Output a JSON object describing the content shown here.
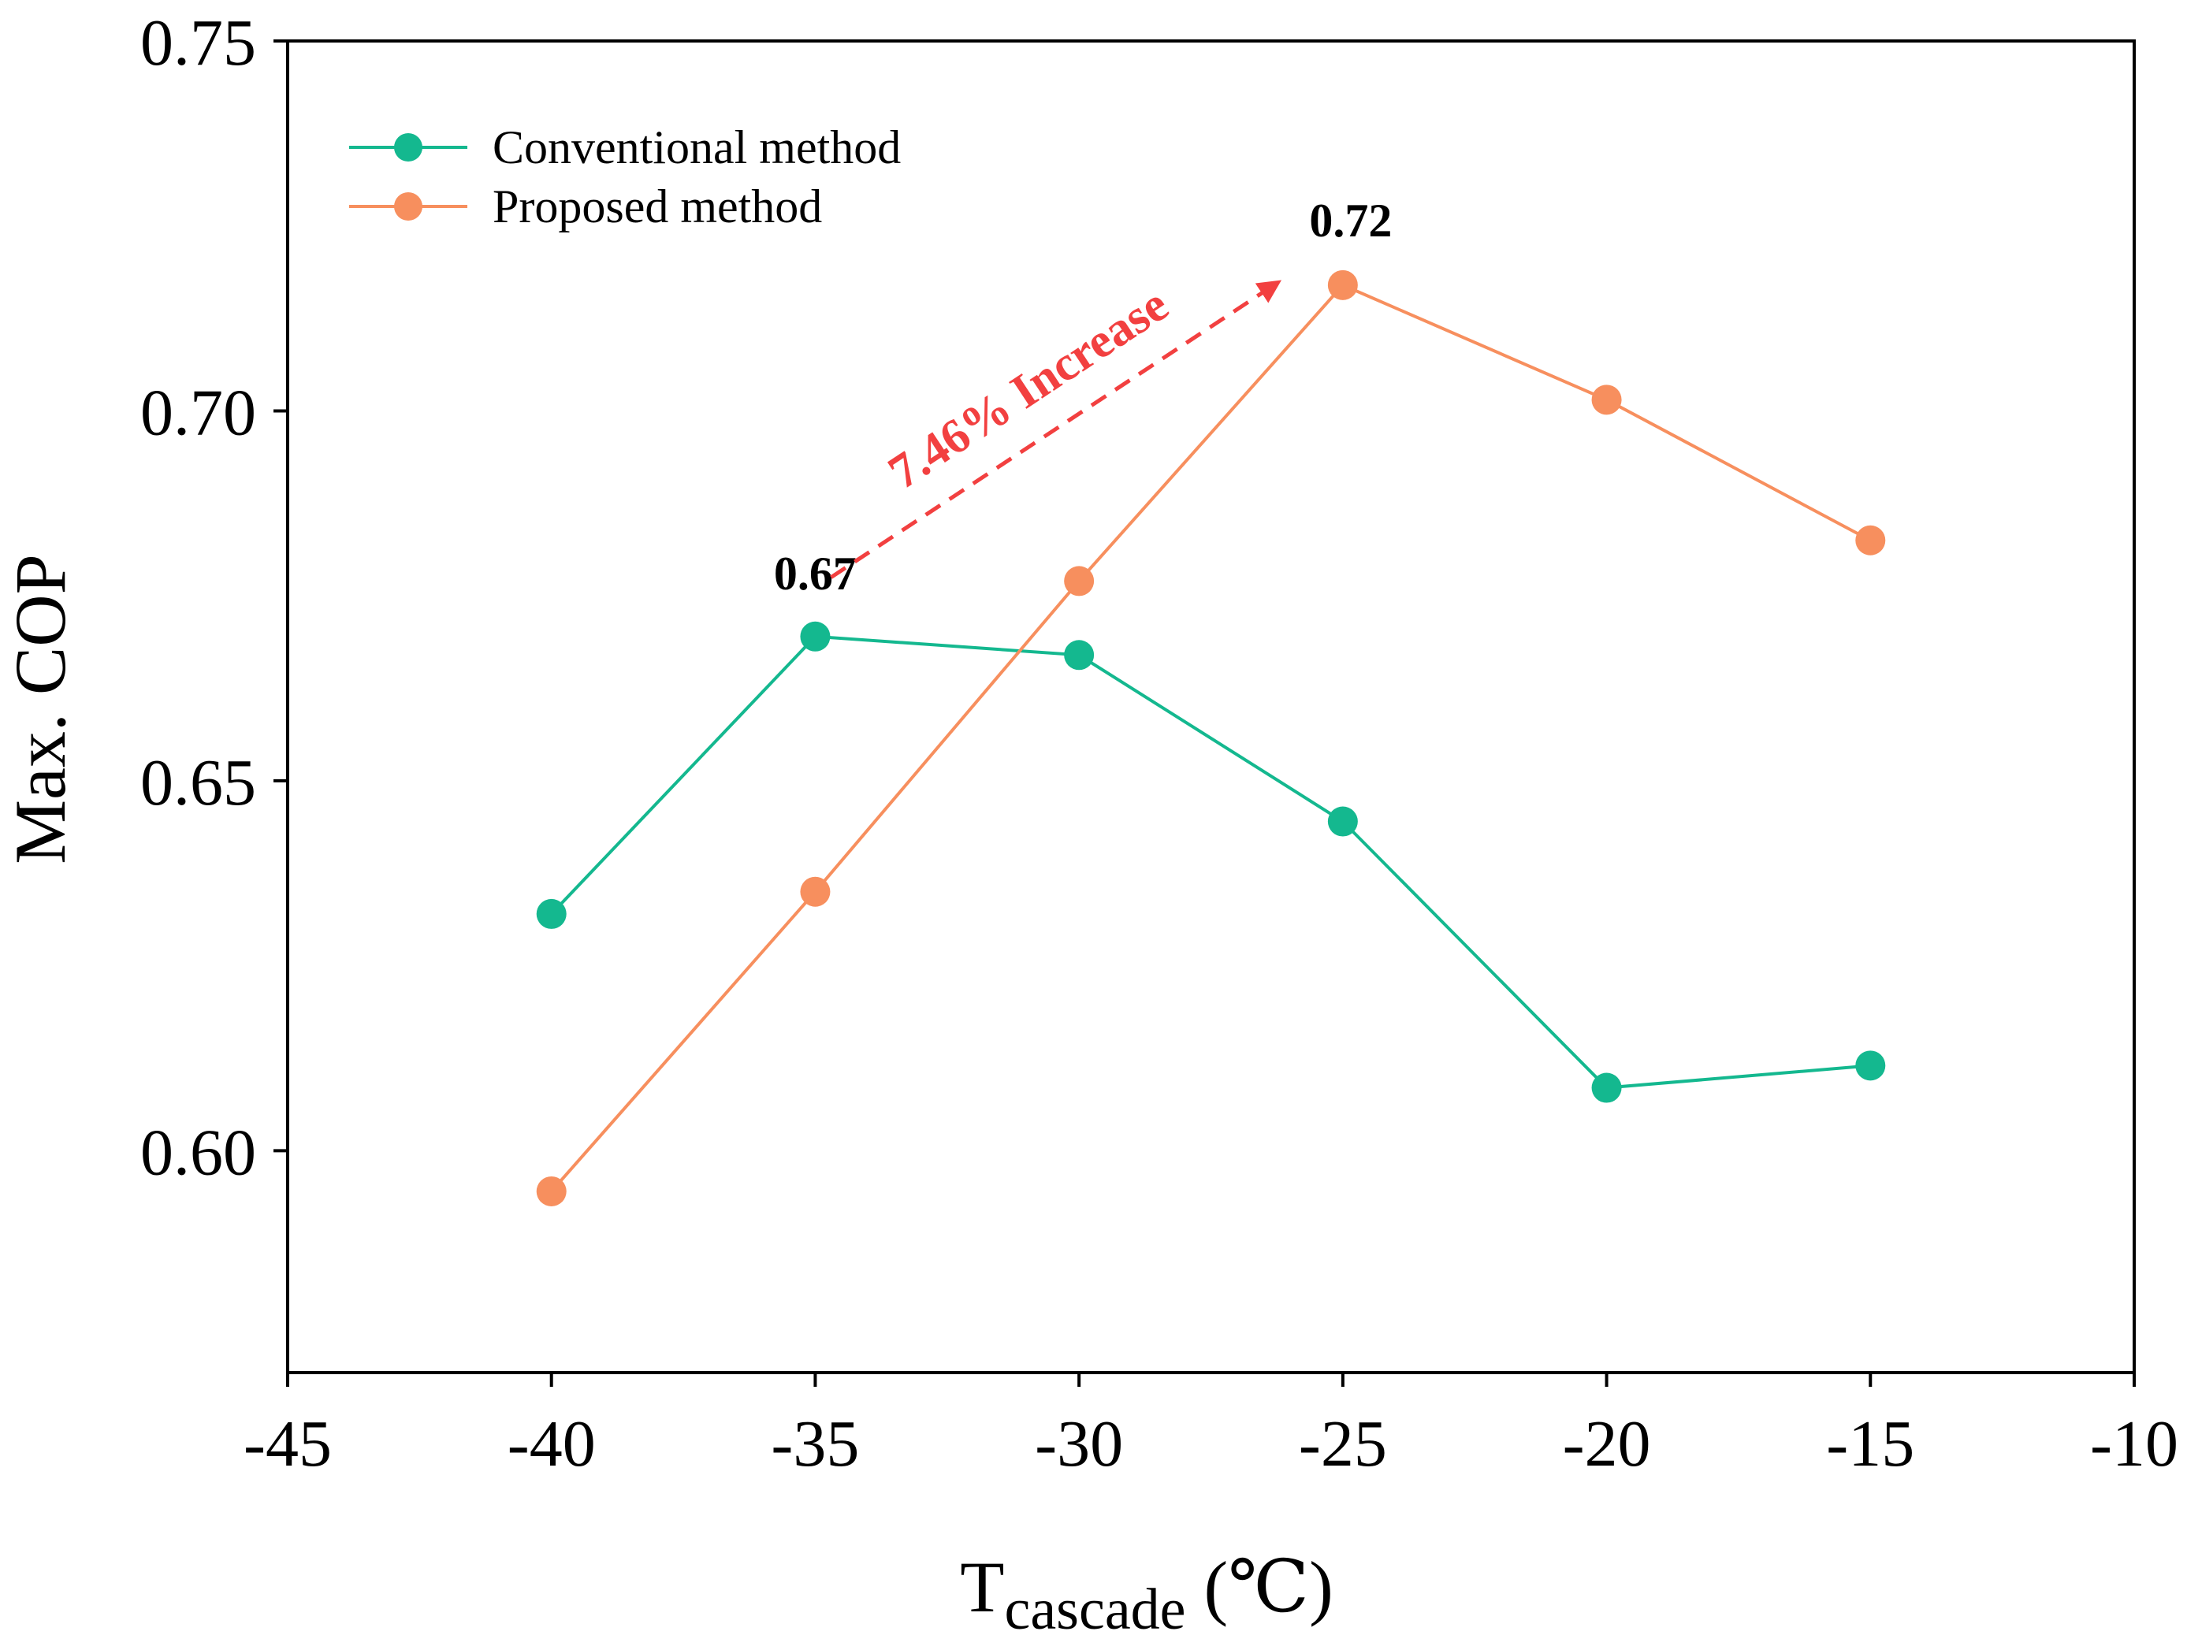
{
  "chart_data": {
    "type": "line",
    "xlabel_main": "T",
    "xlabel_sub": "cascade",
    "xlabel_unit": " (℃)",
    "ylabel": "Max. COP",
    "xlim": [
      -45,
      -10
    ],
    "ylim": [
      0.57,
      0.75
    ],
    "x_ticks": [
      -45,
      -40,
      -35,
      -30,
      -25,
      -20,
      -15,
      -10
    ],
    "x_tick_labels": [
      "-45",
      "-40",
      "-35",
      "-30",
      "-25",
      "-20",
      "-15",
      "-10"
    ],
    "y_ticks": [
      0.6,
      0.65,
      0.7,
      0.75
    ],
    "y_tick_labels": [
      "0.60",
      "0.65",
      "0.70",
      "0.75"
    ],
    "grid": false,
    "legend_position": "top-left",
    "x": [
      -40,
      -35,
      -30,
      -25,
      -20,
      -15
    ],
    "series": [
      {
        "name": "Conventional method",
        "color": "#14b88f",
        "values": [
          0.632,
          0.6695,
          0.667,
          0.6445,
          0.6085,
          0.6115
        ]
      },
      {
        "name": "Proposed method",
        "color": "#f78f5e",
        "values": [
          0.5945,
          0.635,
          0.677,
          0.717,
          0.7015,
          0.6825
        ]
      }
    ],
    "annotations": [
      {
        "text": "0.67",
        "x": -35,
        "y": 0.6695
      },
      {
        "text": "0.72",
        "x": -25,
        "y": 0.717
      },
      {
        "text": "7.46% Increase",
        "color": "#f24040",
        "from": [
          -34.7,
          0.6775
        ],
        "to": [
          -26.2,
          0.7175
        ]
      }
    ]
  }
}
